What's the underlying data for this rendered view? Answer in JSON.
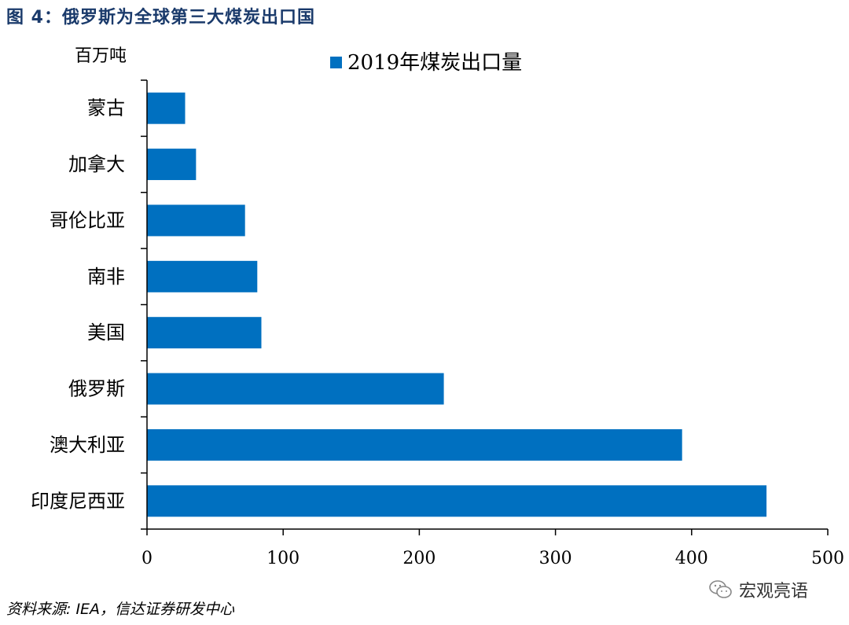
{
  "figure": {
    "title": "图 4：俄罗斯为全球第三大煤炭出口国",
    "source": "资料来源: IEA，信达证券研发中心",
    "watermark": "宏观亮语",
    "watermark_icon": "wechat-icon"
  },
  "chart_data": {
    "type": "bar",
    "orientation": "horizontal",
    "title": "",
    "unit_label": "百万吨",
    "xlabel": "",
    "ylabel": "",
    "xlim": [
      0,
      500
    ],
    "x_ticks": [
      0,
      100,
      200,
      300,
      400,
      500
    ],
    "grid": false,
    "legend_position": "top",
    "bar_color": "#0070c0",
    "categories": [
      "蒙古",
      "加拿大",
      "哥伦比亚",
      "南非",
      "美国",
      "俄罗斯",
      "澳大利亚",
      "印度尼西亚"
    ],
    "series": [
      {
        "name": "2019年煤炭出口量",
        "values": [
          28,
          36,
          72,
          81,
          84,
          218,
          393,
          455
        ]
      }
    ]
  }
}
